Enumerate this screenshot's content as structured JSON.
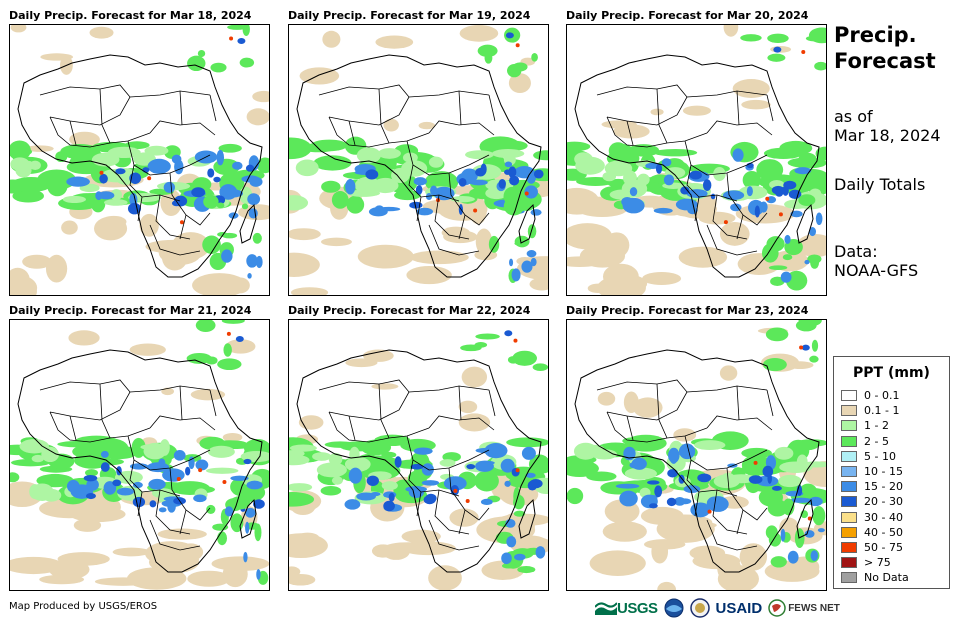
{
  "panels": [
    {
      "title": "Daily Precip. Forecast for Mar 18, 2024"
    },
    {
      "title": "Daily Precip. Forecast for Mar 19, 2024"
    },
    {
      "title": "Daily Precip. Forecast for Mar 20, 2024"
    },
    {
      "title": "Daily Precip. Forecast for Mar 21, 2024"
    },
    {
      "title": "Daily Precip. Forecast for Mar 22, 2024"
    },
    {
      "title": "Daily Precip. Forecast for Mar 23, 2024"
    }
  ],
  "side": {
    "title_line1": "Precip.",
    "title_line2": "Forecast",
    "asof_line1": "as of",
    "asof_line2": "Mar 18, 2024",
    "totals": "Daily Totals",
    "data_line1": "Data:",
    "data_line2": "NOAA-GFS"
  },
  "legend": {
    "title": "PPT (mm)",
    "items": [
      {
        "label": "0 - 0.1",
        "color": "#ffffff"
      },
      {
        "label": "0.1 - 1",
        "color": "#e8d6b4"
      },
      {
        "label": "1 - 2",
        "color": "#aef5a3"
      },
      {
        "label": "2 - 5",
        "color": "#5ce85a"
      },
      {
        "label": "5 - 10",
        "color": "#b0f0f5"
      },
      {
        "label": "10 - 15",
        "color": "#78b4f0"
      },
      {
        "label": "15 - 20",
        "color": "#3c8ce6"
      },
      {
        "label": "20 - 30",
        "color": "#1a5ad2"
      },
      {
        "label": "30 - 40",
        "color": "#fbe08a"
      },
      {
        "label": "40 - 50",
        "color": "#f5a000"
      },
      {
        "label": "50 - 75",
        "color": "#f03c00"
      },
      {
        "label": "> 75",
        "color": "#a01414"
      },
      {
        "label": "No Data",
        "color": "#a0a0a0"
      }
    ]
  },
  "footer": {
    "credit": "Map Produced by USGS/EROS",
    "logo_usgs": "USGS",
    "logo_usaid": "USAID",
    "logo_fewsnet": "FEWS NET"
  }
}
